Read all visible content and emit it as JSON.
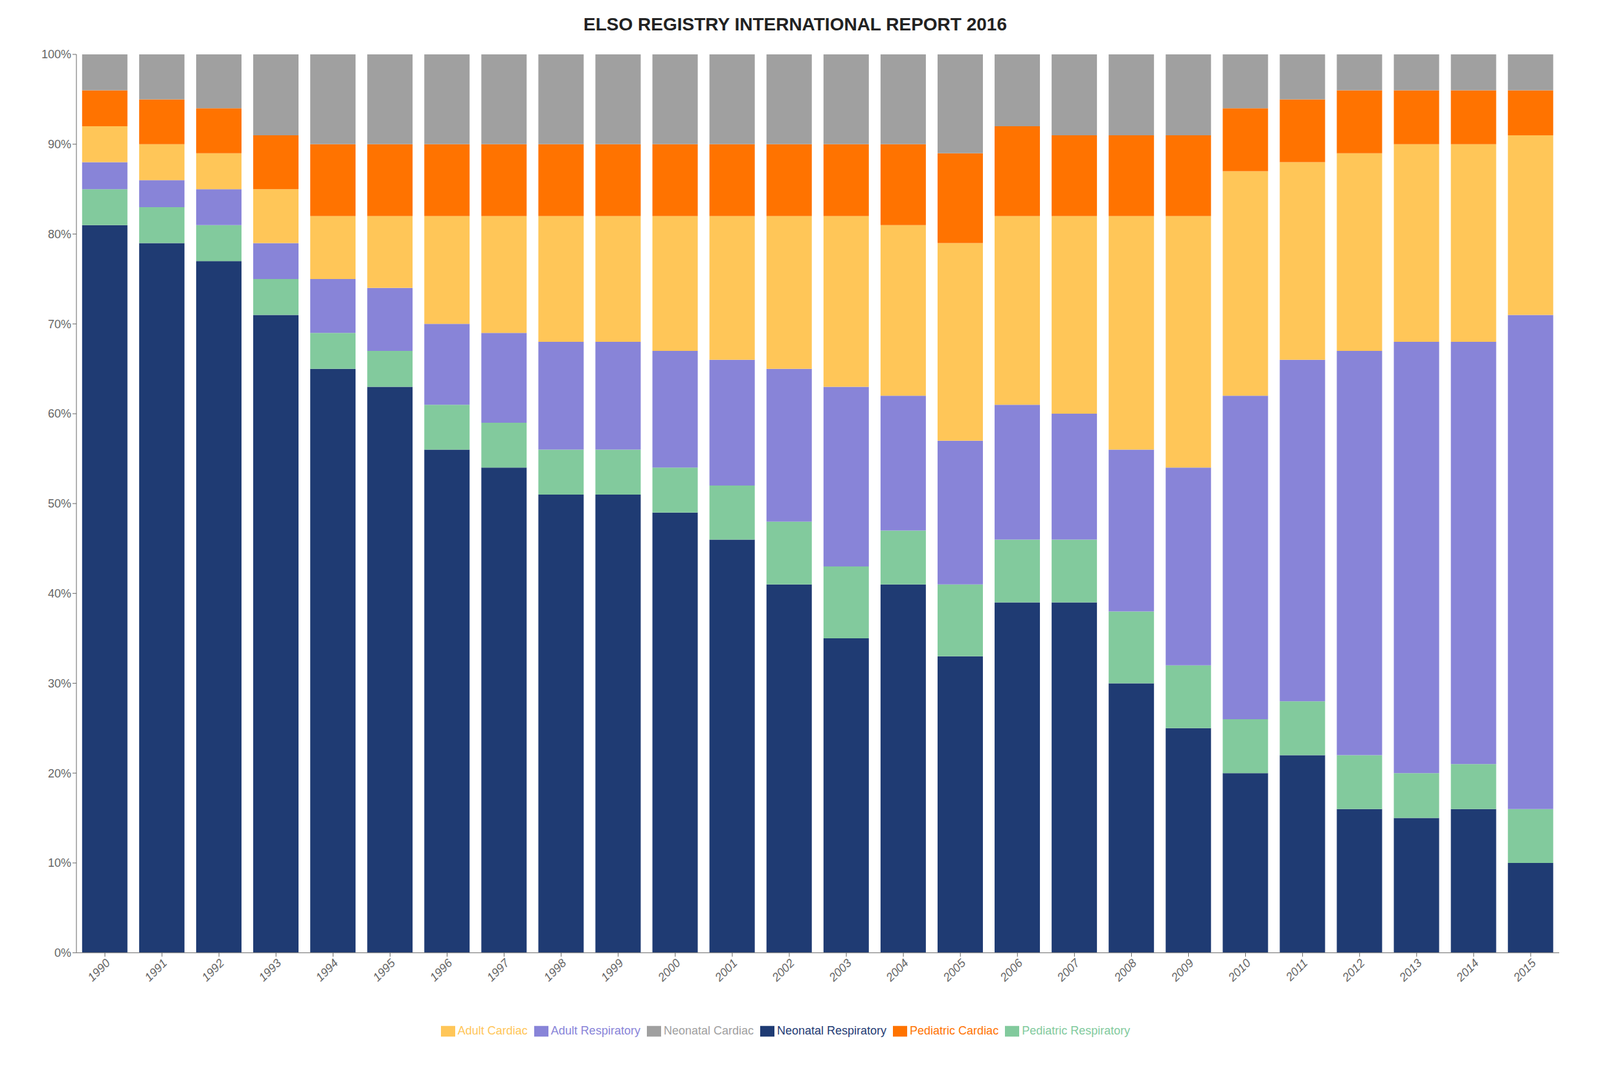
{
  "chart_data": {
    "type": "bar",
    "title": "ELSO REGISTRY INTERNATIONAL REPORT 2016",
    "stacked": true,
    "grid": false,
    "legend": "bottom",
    "categories": [
      "1990",
      "1991",
      "1992",
      "1993",
      "1994",
      "1995",
      "1996",
      "1997",
      "1998",
      "1999",
      "2000",
      "2001",
      "2002",
      "2003",
      "2004",
      "2005",
      "2006",
      "2007",
      "2008",
      "2009",
      "2010",
      "2011",
      "2012",
      "2013",
      "2014",
      "2015"
    ],
    "series": [
      {
        "name": "Neonatal Respiratory",
        "color": "#1f3b73",
        "values": [
          81,
          79,
          77,
          71,
          65,
          63,
          56,
          54,
          51,
          51,
          49,
          46,
          41,
          35,
          41,
          33,
          39,
          39,
          30,
          25,
          20,
          22,
          16,
          15,
          16,
          10
        ]
      },
      {
        "name": "Pediatric Respiratory",
        "color": "#82ca9d",
        "values": [
          4,
          4,
          4,
          4,
          4,
          4,
          5,
          5,
          5,
          5,
          5,
          6,
          7,
          8,
          6,
          8,
          7,
          7,
          8,
          7,
          6,
          6,
          6,
          5,
          5,
          6
        ]
      },
      {
        "name": "Adult Respiratory",
        "color": "#8884d8",
        "values": [
          3,
          3,
          4,
          4,
          6,
          7,
          9,
          10,
          12,
          12,
          13,
          14,
          17,
          20,
          15,
          16,
          15,
          14,
          18,
          22,
          36,
          38,
          45,
          48,
          47,
          55
        ]
      },
      {
        "name": "Adult Cardiac",
        "color": "#ffc658",
        "values": [
          4,
          4,
          4,
          6,
          7,
          8,
          12,
          13,
          14,
          14,
          15,
          16,
          17,
          19,
          19,
          22,
          21,
          22,
          26,
          28,
          25,
          22,
          22,
          22,
          22,
          20
        ]
      },
      {
        "name": "Pediatric Cardiac",
        "color": "#ff7300",
        "values": [
          4,
          5,
          5,
          6,
          8,
          8,
          8,
          8,
          8,
          8,
          8,
          8,
          8,
          8,
          9,
          10,
          10,
          9,
          9,
          9,
          7,
          7,
          7,
          6,
          6,
          5
        ]
      },
      {
        "name": "Neonatal Cardiac",
        "color": "#a0a0a0",
        "values": [
          4,
          5,
          6,
          9,
          10,
          10,
          10,
          10,
          10,
          10,
          10,
          10,
          10,
          10,
          10,
          11,
          8,
          9,
          9,
          9,
          6,
          5,
          4,
          4,
          4,
          4
        ]
      }
    ],
    "ylim": [
      0,
      100
    ],
    "yticks": [
      {
        "value": 0,
        "label": "0%"
      },
      {
        "value": 10,
        "label": "10%"
      },
      {
        "value": 20,
        "label": "20%"
      },
      {
        "value": 30,
        "label": "30%"
      },
      {
        "value": 40,
        "label": "40%"
      },
      {
        "value": 50,
        "label": "50%"
      },
      {
        "value": 60,
        "label": "60%"
      },
      {
        "value": 70,
        "label": "70%"
      },
      {
        "value": 80,
        "label": "80%"
      },
      {
        "value": 90,
        "label": "90%"
      },
      {
        "value": 100,
        "label": "100%"
      }
    ]
  }
}
